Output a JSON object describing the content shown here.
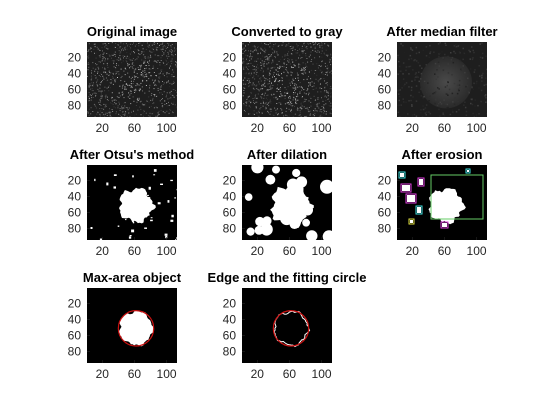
{
  "chart_data": {
    "type": "image-grid",
    "x_ticks": [
      20,
      60,
      100
    ],
    "y_ticks": [
      20,
      40,
      60,
      80
    ],
    "xlim": [
      1,
      113
    ],
    "ylim": [
      1,
      94
    ],
    "colors": {
      "noise_bg": "#1e1e1e",
      "binary_fg": "#ffffff",
      "bbox_green": "#66cc66",
      "bbox_magenta": "#e040e0",
      "bbox_cyan": "#40e0e0",
      "bbox_yellow": "#e0e040",
      "fit_circle": "#cc1111"
    },
    "panels": [
      {
        "title": "Original image",
        "kind": "noise"
      },
      {
        "title": "Converted to gray",
        "kind": "noise"
      },
      {
        "title": "After median filter",
        "kind": "smooth"
      },
      {
        "title": "After Otsu's method",
        "kind": "otsu"
      },
      {
        "title": "After dilation",
        "kind": "dilation"
      },
      {
        "title": "After erosion",
        "kind": "erosion"
      },
      {
        "title": "Max-area object",
        "kind": "maxarea"
      },
      {
        "title": "Edge and the fitting circle",
        "kind": "edge"
      }
    ],
    "blob": {
      "center": [
        62,
        51
      ],
      "radius": 22
    },
    "fit_circle": {
      "center": [
        62,
        51
      ],
      "radius": 22
    }
  }
}
